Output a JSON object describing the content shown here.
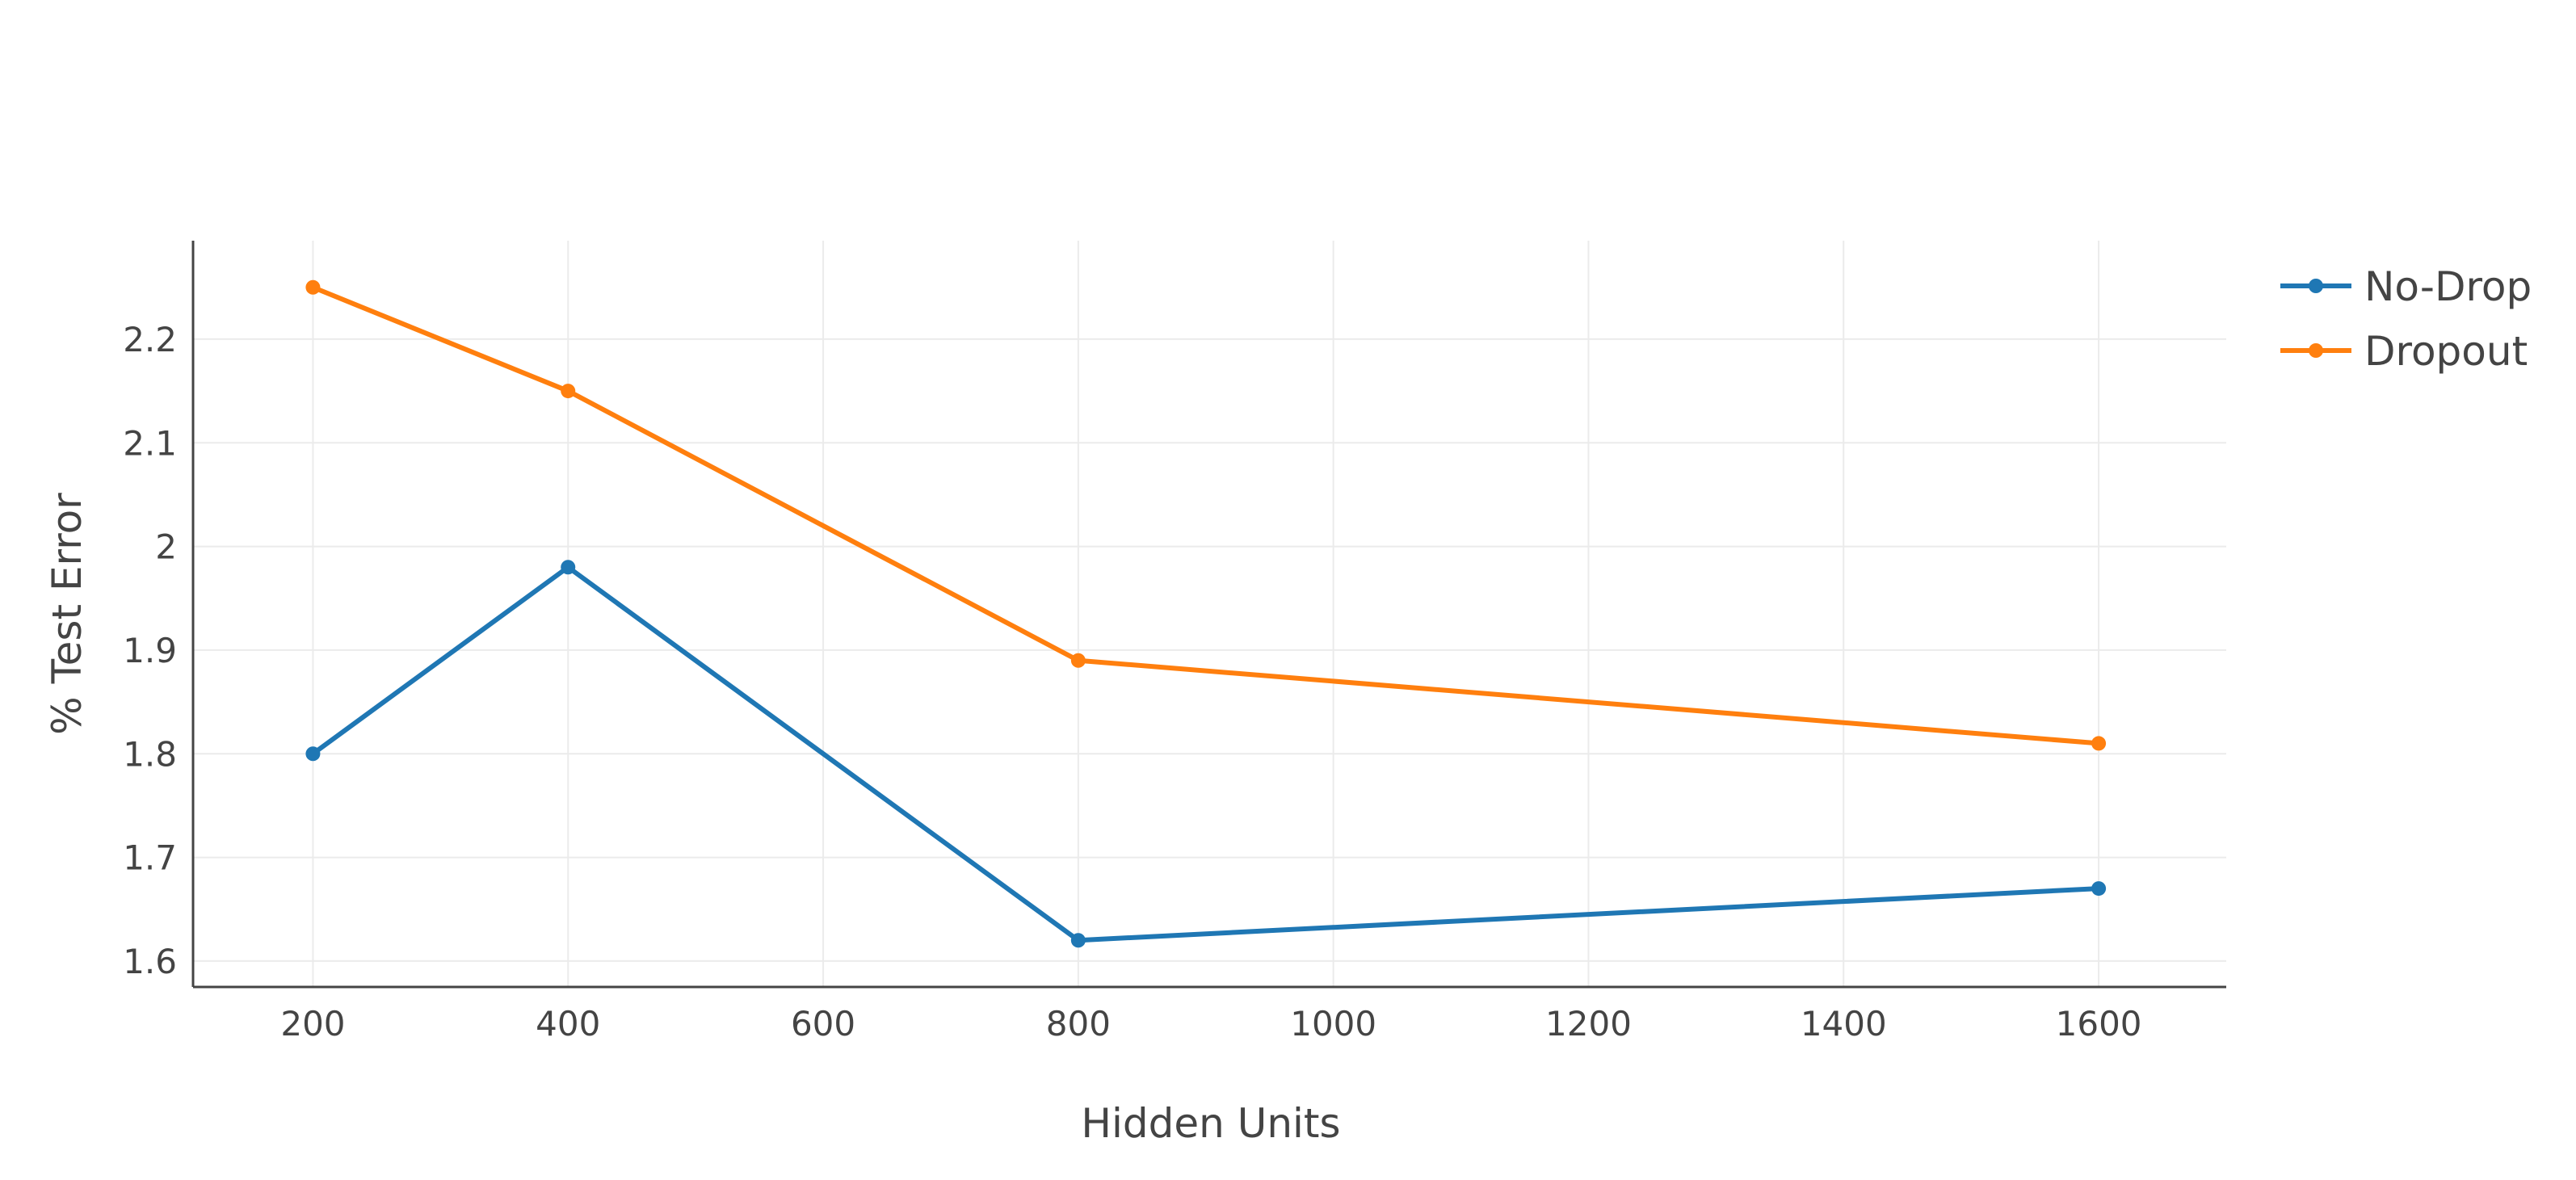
{
  "chart_data": {
    "type": "line",
    "title": "",
    "xlabel": "Hidden Units",
    "ylabel": "% Test Error",
    "xlim": [
      106,
      1700
    ],
    "ylim": [
      1.575,
      2.295
    ],
    "x_ticks": [
      200,
      400,
      600,
      800,
      1000,
      1200,
      1400,
      1600
    ],
    "x_tick_labels": [
      "200",
      "400",
      "600",
      "800",
      "1000",
      "1200",
      "1400",
      "1600"
    ],
    "y_ticks": [
      1.6,
      1.7,
      1.8,
      1.9,
      2.0,
      2.1,
      2.2
    ],
    "y_tick_labels": [
      "1.6",
      "1.7",
      "1.8",
      "1.9",
      "2",
      "2.1",
      "2.2"
    ],
    "grid": true,
    "legend_position": "top-right",
    "series": [
      {
        "name": "No-Drop",
        "color": "#1f77b4",
        "x": [
          200,
          400,
          800,
          1600
        ],
        "values": [
          1.8,
          1.98,
          1.62,
          1.67
        ]
      },
      {
        "name": "Dropout",
        "color": "#ff7f0e",
        "x": [
          200,
          400,
          800,
          1600
        ],
        "values": [
          2.25,
          2.15,
          1.89,
          1.81
        ]
      }
    ]
  }
}
